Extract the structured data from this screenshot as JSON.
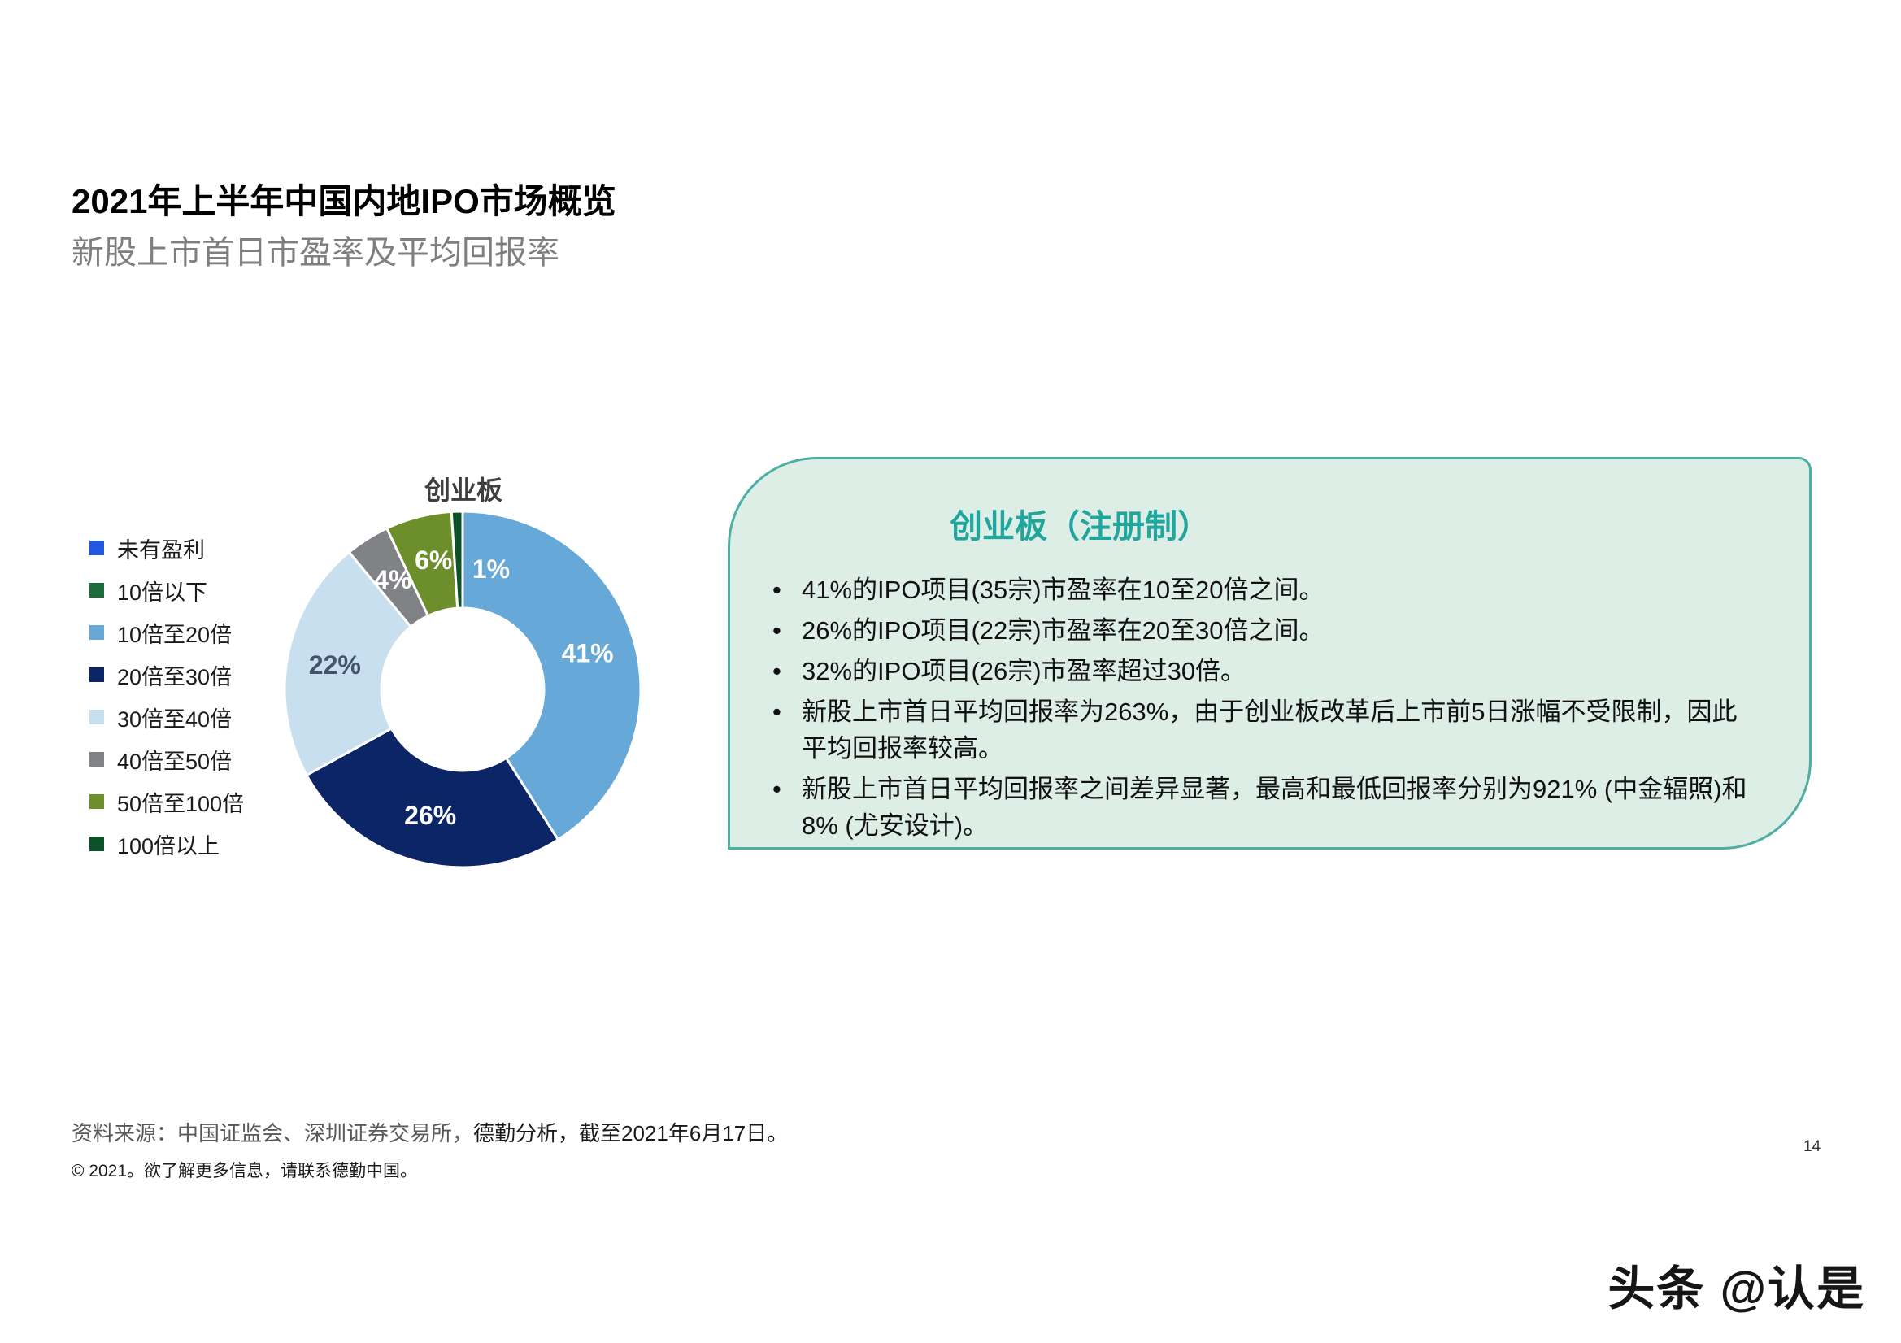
{
  "page": {
    "title": "2021年上半年中国内地IPO市场概览",
    "subtitle": "新股上市首日市盈率及平均回报率",
    "page_number": "14",
    "watermark": "头条 @认是"
  },
  "chart_data": {
    "type": "pie",
    "subtype": "donut",
    "title": "创业板",
    "legend_position": "left",
    "direction": "clockwise",
    "start_angle_deg": 0,
    "legend": [
      {
        "label": "未有盈利",
        "color": "#2257e0"
      },
      {
        "label": "10倍以下",
        "color": "#1b6b3c"
      },
      {
        "label": "10倍至20倍",
        "color": "#66a9d8"
      },
      {
        "label": "20倍至30倍",
        "color": "#0b2566"
      },
      {
        "label": "30倍至40倍",
        "color": "#c8dfef"
      },
      {
        "label": "40倍至50倍",
        "color": "#808285"
      },
      {
        "label": "50倍至100倍",
        "color": "#6c8f2b"
      },
      {
        "label": "100倍以上",
        "color": "#0d5129"
      }
    ],
    "slices": [
      {
        "label": "10倍至20倍",
        "value": 41,
        "display": "41%",
        "color": "#66a9d8",
        "label_color": "#ffffff",
        "label_offset": [
          0,
          0
        ]
      },
      {
        "label": "20倍至30倍",
        "value": 26,
        "display": "26%",
        "color": "#0b2566",
        "label_color": "#ffffff",
        "label_offset": [
          0,
          0
        ]
      },
      {
        "label": "30倍至40倍",
        "value": 22,
        "display": "22%",
        "color": "#c8dfef",
        "label_color": "#44546a",
        "label_offset": [
          0,
          0
        ]
      },
      {
        "label": "40倍至50倍",
        "value": 4,
        "display": "4%",
        "color": "#808285",
        "label_color": "#ffffff",
        "label_offset": [
          0,
          0
        ]
      },
      {
        "label": "50倍至100倍",
        "value": 6,
        "display": "6%",
        "color": "#6c8f2b",
        "label_color": "#ffffff",
        "label_offset": [
          4,
          -4
        ]
      },
      {
        "label": "100倍以上",
        "value": 1,
        "display": "1%",
        "color": "#0d5129",
        "label_color": "#ffffff",
        "label_offset": [
          40,
          12
        ]
      }
    ]
  },
  "info_box": {
    "title": "创业板（注册制）",
    "title_color": "#21a69e",
    "fill": "#dceee6",
    "border_color": "#4dafa3",
    "bullets": [
      "41%的IPO项目(35宗)市盈率在10至20倍之间。",
      "26%的IPO项目(22宗)市盈率在20至30倍之间。",
      "32%的IPO项目(26宗)市盈率超过30倍。",
      "新股上市首日平均回报率为263%，由于创业板改革后上市前5日涨幅不受限制，因此平均回报率较高。",
      "新股上市首日平均回报率之间差异显著，最高和最低回报率分别为921% (中金辐照)和8% (尤安设计)。"
    ]
  },
  "footer": {
    "source_gray": "资料来源：中国证监会、深圳证券交易所，",
    "source_black": "德勤分析，截至2021年6月17日。",
    "copyright": "© 2021。欲了解更多信息，请联系德勤中国。"
  }
}
